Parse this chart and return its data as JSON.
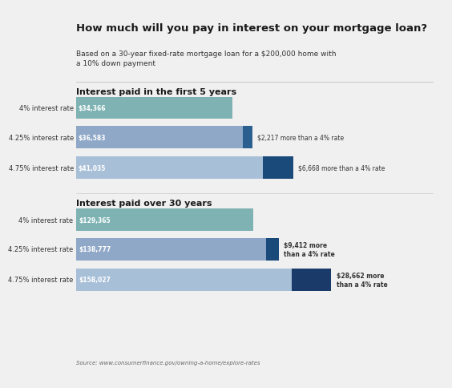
{
  "title": "How much will you pay in interest on your mortgage loan?",
  "subtitle": "Based on a 30-year fixed-rate mortgage loan for a $200,000 home with\na 10% down payment",
  "bg_color": "#f0f0f0",
  "section1_title": "Interest paid in the first 5 years",
  "section2_title": "Interest paid over 30 years",
  "source": "Source: www.consumerfinance.gov/owning-a-home/explore-rates",
  "bars5": {
    "labels": [
      "4% interest rate",
      "4.25% interest rate",
      "4.75% interest rate"
    ],
    "base_values": [
      34366,
      36583,
      41035
    ],
    "extra_values": [
      0,
      2217,
      6669
    ],
    "base_labels": [
      "$34,366",
      "$36,583",
      "$41,035"
    ],
    "extra_labels": [
      "",
      "$2,217 more than a 4% rate",
      "$6,668 more than a 4% rate"
    ],
    "base_colors": [
      "#7fb3b3",
      "#8fa8c8",
      "#a8bfd8"
    ],
    "extra_colors": [
      "#7fb3b3",
      "#2a5f8f",
      "#1a4a7a"
    ]
  },
  "bars30": {
    "labels": [
      "4% interest rate",
      "4.25% interest rate",
      "4.75% interest rate"
    ],
    "base_values": [
      129365,
      138777,
      158027
    ],
    "extra_values": [
      0,
      9412,
      28662
    ],
    "base_labels": [
      "$129,365",
      "$138,777",
      "$158,027"
    ],
    "extra_labels": [
      "",
      "$9,412 more\nthan a 4% rate",
      "$28,662 more\nthan a 4% rate"
    ],
    "base_colors": [
      "#7fb3b3",
      "#8fa8c8",
      "#a8bfd8"
    ],
    "extra_colors": [
      "#7fb3b3",
      "#1a4a7a",
      "#1a3a6a"
    ]
  }
}
